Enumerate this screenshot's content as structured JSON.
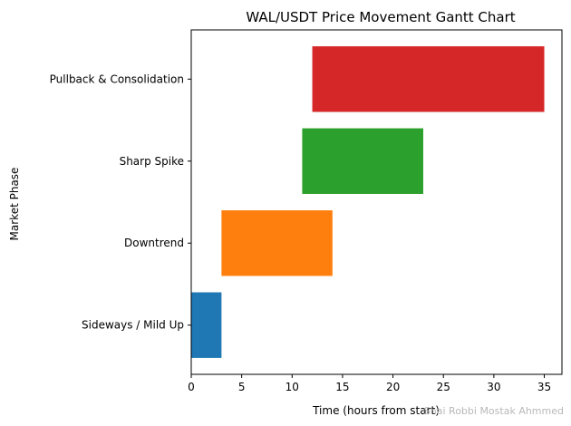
{
  "chart_data": {
    "type": "bar",
    "orientation": "horizontal",
    "title": "WAL/USDT Price Movement Gantt Chart",
    "xlabel": "Time (hours from start)",
    "ylabel": "Market Phase",
    "xlim": [
      0,
      36.75
    ],
    "xticks": [
      0,
      5,
      10,
      15,
      20,
      25,
      30,
      35
    ],
    "categories": [
      "Sideways / Mild Up",
      "Downtrend",
      "Sharp Spike",
      "Pullback & Consolidation"
    ],
    "bars": [
      {
        "label": "Sideways / Mild Up",
        "start": 0,
        "end": 3,
        "color": "#1f77b4"
      },
      {
        "label": "Downtrend",
        "start": 3,
        "end": 14,
        "color": "#ff7f0e"
      },
      {
        "label": "Sharp Spike",
        "start": 11,
        "end": 23,
        "color": "#2ca02c"
      },
      {
        "label": "Pullback & Consolidation",
        "start": 12,
        "end": 35,
        "color": "#d62728"
      }
    ],
    "grid": false,
    "legend": "none"
  },
  "watermark": "Shai Robbi Mostak Ahmmed"
}
